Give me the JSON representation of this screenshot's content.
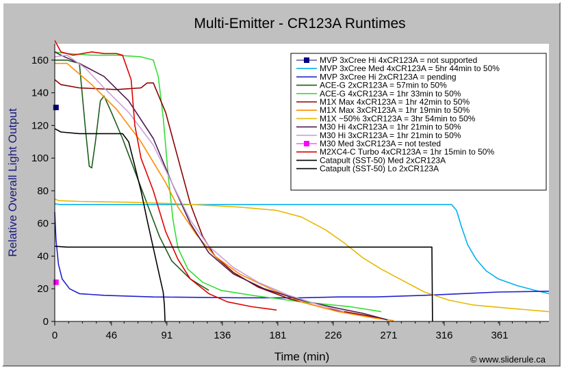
{
  "chart_data": {
    "type": "line",
    "title": "Multi-Emitter - CR123A Runtimes",
    "xlabel": "Time (min)",
    "ylabel": "Relative Overall Light Output",
    "copyright": "© www.sliderule.ca",
    "xlim": [
      0,
      401
    ],
    "ylim": [
      0,
      170
    ],
    "xticks": [
      0,
      46,
      91,
      136,
      181,
      226,
      271,
      316,
      361
    ],
    "yticks": [
      0,
      20,
      40,
      60,
      80,
      100,
      120,
      140,
      160
    ],
    "legend_position": "top-right",
    "grid": false,
    "series": [
      {
        "name": "MVP 3xCree Hi 4xCR123A = not supported",
        "color": "#000080",
        "style": "marker-square",
        "points": [
          [
            1,
            131
          ]
        ]
      },
      {
        "name": "MVP 3xCree Med 4xCR123A = 5hr 44min to 50%",
        "color": "#00b0f0",
        "points": [
          [
            0,
            72
          ],
          [
            5,
            71.5
          ],
          [
            50,
            71.5
          ],
          [
            150,
            71.5
          ],
          [
            250,
            71.5
          ],
          [
            300,
            71.5
          ],
          [
            322,
            71.5
          ],
          [
            326,
            68
          ],
          [
            330,
            58
          ],
          [
            335,
            47
          ],
          [
            342,
            38
          ],
          [
            350,
            31
          ],
          [
            360,
            26
          ],
          [
            375,
            22
          ],
          [
            390,
            19
          ],
          [
            401,
            17
          ]
        ]
      },
      {
        "name": "MVP 3xCree Hi 2xCR123A = pending",
        "color": "#1f1fd0",
        "points": [
          [
            0,
            67
          ],
          [
            1,
            50
          ],
          [
            3,
            35
          ],
          [
            6,
            26
          ],
          [
            12,
            20
          ],
          [
            20,
            17
          ],
          [
            40,
            16
          ],
          [
            80,
            15
          ],
          [
            150,
            14.5
          ],
          [
            200,
            14.5
          ],
          [
            230,
            15
          ],
          [
            260,
            15
          ],
          [
            300,
            16
          ],
          [
            330,
            17
          ],
          [
            360,
            18
          ],
          [
            401,
            18.5
          ]
        ]
      },
      {
        "name": "ACE-G 2xCR123A = 57min to 50%",
        "color": "#1a5c1a",
        "points": [
          [
            0,
            160
          ],
          [
            10,
            160
          ],
          [
            20,
            158
          ],
          [
            25,
            117
          ],
          [
            28,
            95
          ],
          [
            30,
            94
          ],
          [
            33,
            110
          ],
          [
            37,
            135
          ],
          [
            40,
            138
          ],
          [
            46,
            128
          ],
          [
            55,
            112
          ],
          [
            65,
            92
          ],
          [
            75,
            72
          ],
          [
            85,
            52
          ],
          [
            95,
            37
          ],
          [
            110,
            26
          ],
          [
            125,
            19
          ]
        ]
      },
      {
        "name": "ACE-G 4xCR123A = 1hr 33min to 50%",
        "color": "#33dd33",
        "points": [
          [
            0,
            165
          ],
          [
            10,
            164
          ],
          [
            30,
            163
          ],
          [
            50,
            163
          ],
          [
            70,
            162
          ],
          [
            80,
            160
          ],
          [
            84,
            150
          ],
          [
            88,
            125
          ],
          [
            92,
            90
          ],
          [
            96,
            62
          ],
          [
            100,
            45
          ],
          [
            108,
            32
          ],
          [
            120,
            24
          ],
          [
            135,
            19
          ],
          [
            160,
            16
          ],
          [
            200,
            12
          ],
          [
            240,
            9
          ],
          [
            265,
            6
          ]
        ]
      },
      {
        "name": "M1X Max 4xCR123A = 1hr 42min to 50%",
        "color": "#8b0000",
        "points": [
          [
            0,
            148
          ],
          [
            5,
            145
          ],
          [
            20,
            143
          ],
          [
            50,
            142
          ],
          [
            70,
            143
          ],
          [
            75,
            146
          ],
          [
            80,
            146
          ],
          [
            90,
            128
          ],
          [
            100,
            100
          ],
          [
            110,
            72
          ],
          [
            120,
            52
          ],
          [
            130,
            40
          ],
          [
            145,
            30
          ],
          [
            165,
            21
          ],
          [
            190,
            14
          ],
          [
            220,
            8
          ],
          [
            250,
            4
          ],
          [
            270,
            1
          ]
        ]
      },
      {
        "name": "M1X Max 3xCR123A = 1hr 19min to 50%",
        "color": "#ff8c00",
        "points": [
          [
            0,
            158
          ],
          [
            10,
            158
          ],
          [
            30,
            145
          ],
          [
            50,
            130
          ],
          [
            70,
            110
          ],
          [
            90,
            85
          ],
          [
            100,
            70
          ],
          [
            115,
            53
          ],
          [
            130,
            40
          ],
          [
            150,
            29
          ],
          [
            175,
            20
          ],
          [
            200,
            12
          ],
          [
            230,
            6
          ],
          [
            260,
            2
          ],
          [
            275,
            0.5
          ]
        ]
      },
      {
        "name": "M1X ~50% 3xCR123A = 3hr 54min to 50%",
        "color": "#e6b800",
        "points": [
          [
            0,
            75
          ],
          [
            3,
            74
          ],
          [
            20,
            73.5
          ],
          [
            60,
            73
          ],
          [
            100,
            72
          ],
          [
            150,
            70
          ],
          [
            180,
            68
          ],
          [
            200,
            64
          ],
          [
            220,
            56
          ],
          [
            235,
            48
          ],
          [
            250,
            39
          ],
          [
            265,
            32
          ],
          [
            280,
            26
          ],
          [
            300,
            18
          ],
          [
            320,
            13
          ],
          [
            340,
            10
          ],
          [
            370,
            8
          ],
          [
            401,
            6
          ]
        ]
      },
      {
        "name": "M30 Hi 4xCR123A = 1hr 21min to 50%",
        "color": "#4b1a4b",
        "points": [
          [
            0,
            165
          ],
          [
            5,
            163
          ],
          [
            20,
            158
          ],
          [
            40,
            150
          ],
          [
            60,
            135
          ],
          [
            80,
            112
          ],
          [
            95,
            85
          ],
          [
            110,
            60
          ],
          [
            125,
            42
          ],
          [
            145,
            29
          ],
          [
            170,
            20
          ],
          [
            200,
            13
          ],
          [
            230,
            8
          ],
          [
            250,
            5
          ],
          [
            270,
            1
          ]
        ]
      },
      {
        "name": "M30 Hi 3xCR123A = 1hr 21min to 50%",
        "color": "#c9a0dc",
        "points": [
          [
            0,
            162
          ],
          [
            10,
            163
          ],
          [
            25,
            155
          ],
          [
            40,
            143
          ],
          [
            60,
            128
          ],
          [
            80,
            108
          ],
          [
            95,
            85
          ],
          [
            110,
            62
          ],
          [
            125,
            46
          ],
          [
            145,
            33
          ],
          [
            165,
            24
          ],
          [
            190,
            16
          ],
          [
            215,
            10
          ],
          [
            235,
            6
          ]
        ]
      },
      {
        "name": "M30 Med 3xCR123A = not tested",
        "color": "#ff00ff",
        "style": "marker-square",
        "points": [
          [
            1,
            24
          ]
        ]
      },
      {
        "name": "M2XC4-C Turbo 4xCR123A = 1hr 15min to 50%",
        "color": "#e00000",
        "points": [
          [
            0,
            172
          ],
          [
            5,
            165
          ],
          [
            15,
            163
          ],
          [
            30,
            165
          ],
          [
            40,
            164
          ],
          [
            50,
            164
          ],
          [
            55,
            163
          ],
          [
            62,
            148
          ],
          [
            65,
            120
          ],
          [
            70,
            100
          ],
          [
            80,
            80
          ],
          [
            90,
            55
          ],
          [
            100,
            38
          ],
          [
            110,
            26
          ],
          [
            125,
            17
          ],
          [
            140,
            12
          ],
          [
            160,
            9
          ],
          [
            180,
            7
          ]
        ]
      },
      {
        "name": "Catapult (SST-50) Med 2xCR123A",
        "color": "#000000",
        "points": [
          [
            0,
            46
          ],
          [
            10,
            45.5
          ],
          [
            100,
            45.5
          ],
          [
            200,
            45.5
          ],
          [
            300,
            45.5
          ],
          [
            306,
            45.5
          ],
          [
            306.5,
            0
          ]
        ]
      },
      {
        "name": "Catapult (SST-50) Lo 2xCR123A",
        "color": "#000000",
        "points": [
          [
            0,
            118
          ],
          [
            5,
            116
          ],
          [
            20,
            115
          ],
          [
            45,
            115
          ],
          [
            55,
            115
          ],
          [
            60,
            110
          ],
          [
            65,
            95
          ],
          [
            70,
            80
          ],
          [
            75,
            62
          ],
          [
            80,
            45
          ],
          [
            85,
            28
          ],
          [
            88,
            18
          ],
          [
            89,
            10
          ],
          [
            89.5,
            0
          ]
        ]
      }
    ]
  }
}
